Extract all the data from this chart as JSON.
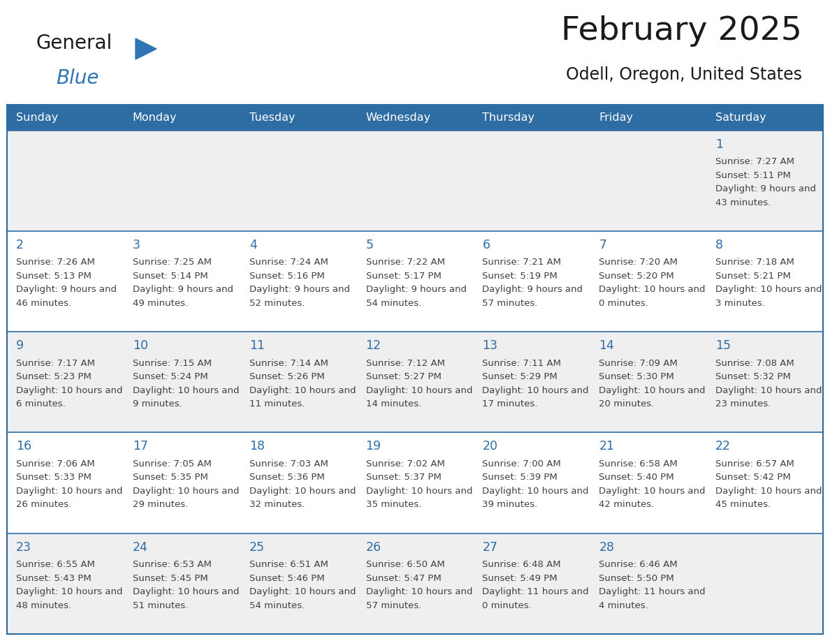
{
  "title": "February 2025",
  "subtitle": "Odell, Oregon, United States",
  "days_of_week": [
    "Sunday",
    "Monday",
    "Tuesday",
    "Wednesday",
    "Thursday",
    "Friday",
    "Saturday"
  ],
  "header_bg": "#2E6DA4",
  "header_text": "#FFFFFF",
  "cell_bg_odd": "#EFEFEF",
  "cell_bg_even": "#FFFFFF",
  "border_color": "#2E6DA4",
  "day_num_color": "#2E6DA4",
  "text_color": "#404040",
  "title_color": "#1a1a1a",
  "calendar_data": [
    [
      null,
      null,
      null,
      null,
      null,
      null,
      {
        "day": 1,
        "sunrise": "7:27 AM",
        "sunset": "5:11 PM",
        "daylight": "9 hours and 43 minutes."
      }
    ],
    [
      {
        "day": 2,
        "sunrise": "7:26 AM",
        "sunset": "5:13 PM",
        "daylight": "9 hours and 46 minutes."
      },
      {
        "day": 3,
        "sunrise": "7:25 AM",
        "sunset": "5:14 PM",
        "daylight": "9 hours and 49 minutes."
      },
      {
        "day": 4,
        "sunrise": "7:24 AM",
        "sunset": "5:16 PM",
        "daylight": "9 hours and 52 minutes."
      },
      {
        "day": 5,
        "sunrise": "7:22 AM",
        "sunset": "5:17 PM",
        "daylight": "9 hours and 54 minutes."
      },
      {
        "day": 6,
        "sunrise": "7:21 AM",
        "sunset": "5:19 PM",
        "daylight": "9 hours and 57 minutes."
      },
      {
        "day": 7,
        "sunrise": "7:20 AM",
        "sunset": "5:20 PM",
        "daylight": "10 hours and 0 minutes."
      },
      {
        "day": 8,
        "sunrise": "7:18 AM",
        "sunset": "5:21 PM",
        "daylight": "10 hours and 3 minutes."
      }
    ],
    [
      {
        "day": 9,
        "sunrise": "7:17 AM",
        "sunset": "5:23 PM",
        "daylight": "10 hours and 6 minutes."
      },
      {
        "day": 10,
        "sunrise": "7:15 AM",
        "sunset": "5:24 PM",
        "daylight": "10 hours and 9 minutes."
      },
      {
        "day": 11,
        "sunrise": "7:14 AM",
        "sunset": "5:26 PM",
        "daylight": "10 hours and 11 minutes."
      },
      {
        "day": 12,
        "sunrise": "7:12 AM",
        "sunset": "5:27 PM",
        "daylight": "10 hours and 14 minutes."
      },
      {
        "day": 13,
        "sunrise": "7:11 AM",
        "sunset": "5:29 PM",
        "daylight": "10 hours and 17 minutes."
      },
      {
        "day": 14,
        "sunrise": "7:09 AM",
        "sunset": "5:30 PM",
        "daylight": "10 hours and 20 minutes."
      },
      {
        "day": 15,
        "sunrise": "7:08 AM",
        "sunset": "5:32 PM",
        "daylight": "10 hours and 23 minutes."
      }
    ],
    [
      {
        "day": 16,
        "sunrise": "7:06 AM",
        "sunset": "5:33 PM",
        "daylight": "10 hours and 26 minutes."
      },
      {
        "day": 17,
        "sunrise": "7:05 AM",
        "sunset": "5:35 PM",
        "daylight": "10 hours and 29 minutes."
      },
      {
        "day": 18,
        "sunrise": "7:03 AM",
        "sunset": "5:36 PM",
        "daylight": "10 hours and 32 minutes."
      },
      {
        "day": 19,
        "sunrise": "7:02 AM",
        "sunset": "5:37 PM",
        "daylight": "10 hours and 35 minutes."
      },
      {
        "day": 20,
        "sunrise": "7:00 AM",
        "sunset": "5:39 PM",
        "daylight": "10 hours and 39 minutes."
      },
      {
        "day": 21,
        "sunrise": "6:58 AM",
        "sunset": "5:40 PM",
        "daylight": "10 hours and 42 minutes."
      },
      {
        "day": 22,
        "sunrise": "6:57 AM",
        "sunset": "5:42 PM",
        "daylight": "10 hours and 45 minutes."
      }
    ],
    [
      {
        "day": 23,
        "sunrise": "6:55 AM",
        "sunset": "5:43 PM",
        "daylight": "10 hours and 48 minutes."
      },
      {
        "day": 24,
        "sunrise": "6:53 AM",
        "sunset": "5:45 PM",
        "daylight": "10 hours and 51 minutes."
      },
      {
        "day": 25,
        "sunrise": "6:51 AM",
        "sunset": "5:46 PM",
        "daylight": "10 hours and 54 minutes."
      },
      {
        "day": 26,
        "sunrise": "6:50 AM",
        "sunset": "5:47 PM",
        "daylight": "10 hours and 57 minutes."
      },
      {
        "day": 27,
        "sunrise": "6:48 AM",
        "sunset": "5:49 PM",
        "daylight": "11 hours and 0 minutes."
      },
      {
        "day": 28,
        "sunrise": "6:46 AM",
        "sunset": "5:50 PM",
        "daylight": "11 hours and 4 minutes."
      },
      null
    ]
  ],
  "logo_text_general": "General",
  "logo_text_blue": "Blue",
  "logo_color_general": "#1a1a1a",
  "logo_color_blue": "#2E75B6",
  "logo_triangle_color": "#2E75B6"
}
